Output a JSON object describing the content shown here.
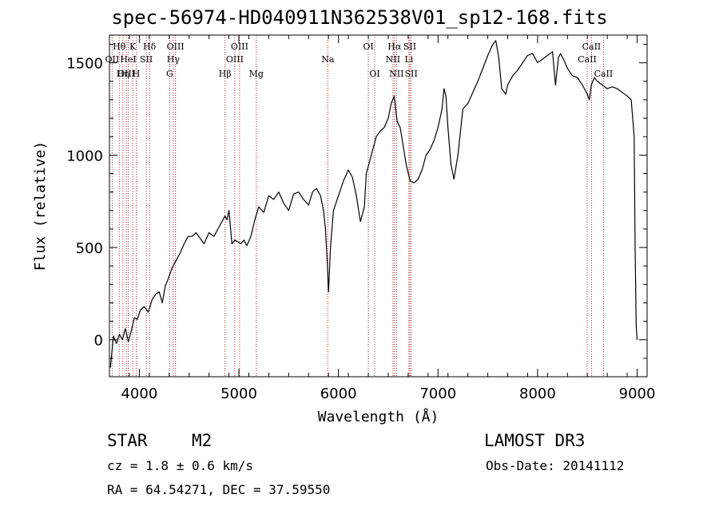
{
  "chart_data": {
    "type": "line",
    "title": "spec-56974-HD040911N362538V01_sp12-168.fits",
    "xlabel": "Wavelength (Å)",
    "ylabel": "Flux (relative)",
    "xlim": [
      3700,
      9100
    ],
    "ylim": [
      -200,
      1650
    ],
    "xticks": [
      4000,
      5000,
      6000,
      7000,
      8000,
      9000
    ],
    "yticks": [
      0,
      500,
      1000,
      1500
    ],
    "grid": false,
    "line_color": "#000000",
    "marker_color": "#aa2222",
    "series": [
      {
        "x": [
          3710,
          3740,
          3770,
          3800,
          3830,
          3860,
          3890,
          3920,
          3950,
          3980,
          4010,
          4050,
          4090,
          4130,
          4170,
          4200,
          4230,
          4260,
          4290,
          4330,
          4370,
          4410,
          4450,
          4490,
          4530,
          4570,
          4610,
          4650,
          4700,
          4750,
          4790,
          4830,
          4860,
          4880,
          4900,
          4930,
          4960,
          4990,
          5020,
          5050,
          5080,
          5120,
          5160,
          5200,
          5250,
          5300,
          5350,
          5400,
          5450,
          5500,
          5550,
          5600,
          5650,
          5700,
          5740,
          5780,
          5820,
          5850,
          5870,
          5890,
          5900,
          5920,
          5950,
          6000,
          6050,
          6100,
          6140,
          6180,
          6220,
          6260,
          6280,
          6310,
          6340,
          6380,
          6420,
          6460,
          6500,
          6530,
          6560,
          6590,
          6620,
          6650,
          6680,
          6720,
          6760,
          6800,
          6840,
          6880,
          6920,
          6960,
          7000,
          7040,
          7060,
          7080,
          7100,
          7130,
          7160,
          7200,
          7250,
          7300,
          7350,
          7400,
          7450,
          7500,
          7550,
          7580,
          7610,
          7640,
          7680,
          7700,
          7750,
          7800,
          7850,
          7900,
          7950,
          8000,
          8050,
          8100,
          8150,
          8180,
          8210,
          8230,
          8260,
          8300,
          8350,
          8400,
          8450,
          8500,
          8520,
          8540,
          8570,
          8600,
          8650,
          8700,
          8750,
          8800,
          8850,
          8900,
          8940,
          8970,
          8980,
          8990,
          9000
        ],
        "y": [
          -150,
          20,
          -20,
          30,
          0,
          60,
          -10,
          50,
          120,
          110,
          160,
          180,
          150,
          220,
          250,
          260,
          200,
          290,
          330,
          390,
          430,
          470,
          520,
          560,
          560,
          580,
          550,
          520,
          580,
          560,
          600,
          640,
          670,
          650,
          700,
          520,
          540,
          530,
          520,
          540,
          510,
          560,
          650,
          720,
          690,
          780,
          760,
          800,
          740,
          700,
          790,
          800,
          760,
          730,
          800,
          820,
          780,
          700,
          600,
          400,
          260,
          500,
          700,
          780,
          860,
          920,
          880,
          780,
          640,
          720,
          900,
          960,
          1020,
          1100,
          1130,
          1150,
          1200,
          1280,
          1320,
          1180,
          1150,
          1050,
          950,
          860,
          850,
          870,
          920,
          1000,
          1030,
          1080,
          1150,
          1250,
          1360,
          1320,
          1150,
          950,
          870,
          1000,
          1250,
          1280,
          1340,
          1400,
          1470,
          1540,
          1600,
          1620,
          1530,
          1360,
          1330,
          1380,
          1430,
          1460,
          1500,
          1540,
          1550,
          1500,
          1520,
          1540,
          1560,
          1380,
          1530,
          1550,
          1520,
          1470,
          1430,
          1420,
          1380,
          1330,
          1300,
          1380,
          1420,
          1400,
          1380,
          1360,
          1370,
          1360,
          1340,
          1320,
          1300,
          1100,
          500,
          80,
          0
        ]
      }
    ],
    "lines": [
      {
        "label": "Hθ",
        "x": 3798,
        "row": 0
      },
      {
        "label": "OII",
        "x": 3727,
        "row": 1
      },
      {
        "label": "OIII",
        "x": 3869,
        "row": 2
      },
      {
        "label": "K",
        "x": 3934,
        "row": 0
      },
      {
        "label": "HeI",
        "x": 3889,
        "row": 1
      },
      {
        "label": "Hη",
        "x": 3835,
        "row": 2
      },
      {
        "label": "Hδ",
        "x": 4102,
        "row": 0
      },
      {
        "label": "SII",
        "x": 4070,
        "row": 1
      },
      {
        "label": "H",
        "x": 3969,
        "row": 2
      },
      {
        "label": "OIII",
        "x": 4363,
        "row": 0
      },
      {
        "label": "Hγ",
        "x": 4341,
        "row": 1
      },
      {
        "label": "G",
        "x": 4305,
        "row": 2
      },
      {
        "label": "OIII",
        "x": 5007,
        "row": 0
      },
      {
        "label": "OIII",
        "x": 4959,
        "row": 1
      },
      {
        "label": "Hβ",
        "x": 4861,
        "row": 2
      },
      {
        "label": "Mg",
        "x": 5175,
        "row": 2
      },
      {
        "label": "Na",
        "x": 5893,
        "row": 1
      },
      {
        "label": "OI",
        "x": 6300,
        "row": 0
      },
      {
        "label": "OI",
        "x": 6364,
        "row": 2
      },
      {
        "label": "Hα",
        "x": 6563,
        "row": 0
      },
      {
        "label": "SII",
        "x": 6717,
        "row": 0
      },
      {
        "label": "NII",
        "x": 6548,
        "row": 1
      },
      {
        "label": "Li",
        "x": 6708,
        "row": 1
      },
      {
        "label": "NII",
        "x": 6583,
        "row": 2
      },
      {
        "label": "SII",
        "x": 6731,
        "row": 2
      },
      {
        "label": "CaII",
        "x": 8542,
        "row": 0
      },
      {
        "label": "CaII",
        "x": 8498,
        "row": 1
      },
      {
        "label": "CaII",
        "x": 8662,
        "row": 2
      }
    ]
  },
  "info": {
    "obj_class": "STAR",
    "subclass": "M2",
    "survey": "LAMOST DR3",
    "cz": "cz = 1.8 ± 0.6 km/s",
    "obs_date": "Obs-Date: 20141112",
    "coords": "RA =  64.54271, DEC =  37.59550"
  }
}
